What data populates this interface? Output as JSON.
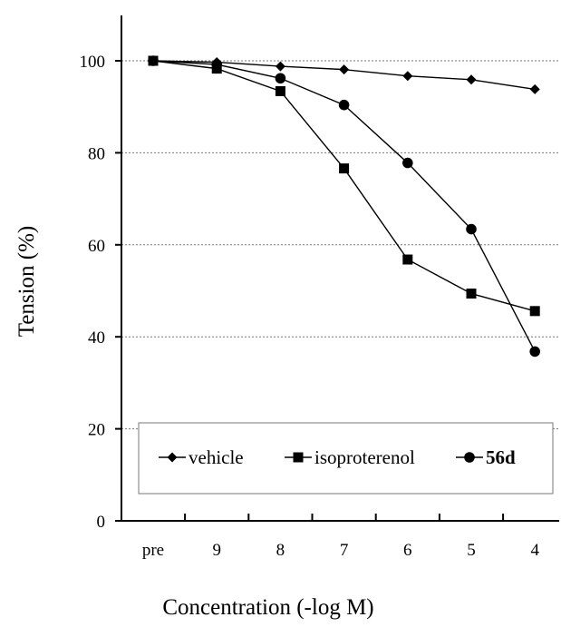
{
  "chart_data": {
    "type": "line",
    "xlabel": "Concentration (-log M)",
    "ylabel": "Tension (%)",
    "categories": [
      "pre",
      "9",
      "8",
      "7",
      "6",
      "5",
      "4"
    ],
    "ylim": [
      0,
      110
    ],
    "yticks": [
      0,
      20,
      40,
      60,
      80,
      100
    ],
    "ytick_labels": [
      "0",
      "20",
      "40",
      "60",
      "80",
      "100"
    ],
    "grid": "horizontal dotted",
    "legend_position": "bottom",
    "series": [
      {
        "name": "vehicle",
        "marker": "diamond",
        "bold": false,
        "values": [
          100,
          99.7,
          98.8,
          98.1,
          96.7,
          95.9,
          93.8
        ]
      },
      {
        "name": "isoproterenol",
        "marker": "square",
        "bold": false,
        "values": [
          100,
          98.3,
          93.4,
          76.6,
          56.8,
          49.4,
          45.6
        ]
      },
      {
        "name": "56d",
        "marker": "circle",
        "bold": true,
        "values": [
          100,
          99.2,
          96.2,
          90.4,
          77.8,
          63.4,
          36.8
        ]
      }
    ]
  }
}
